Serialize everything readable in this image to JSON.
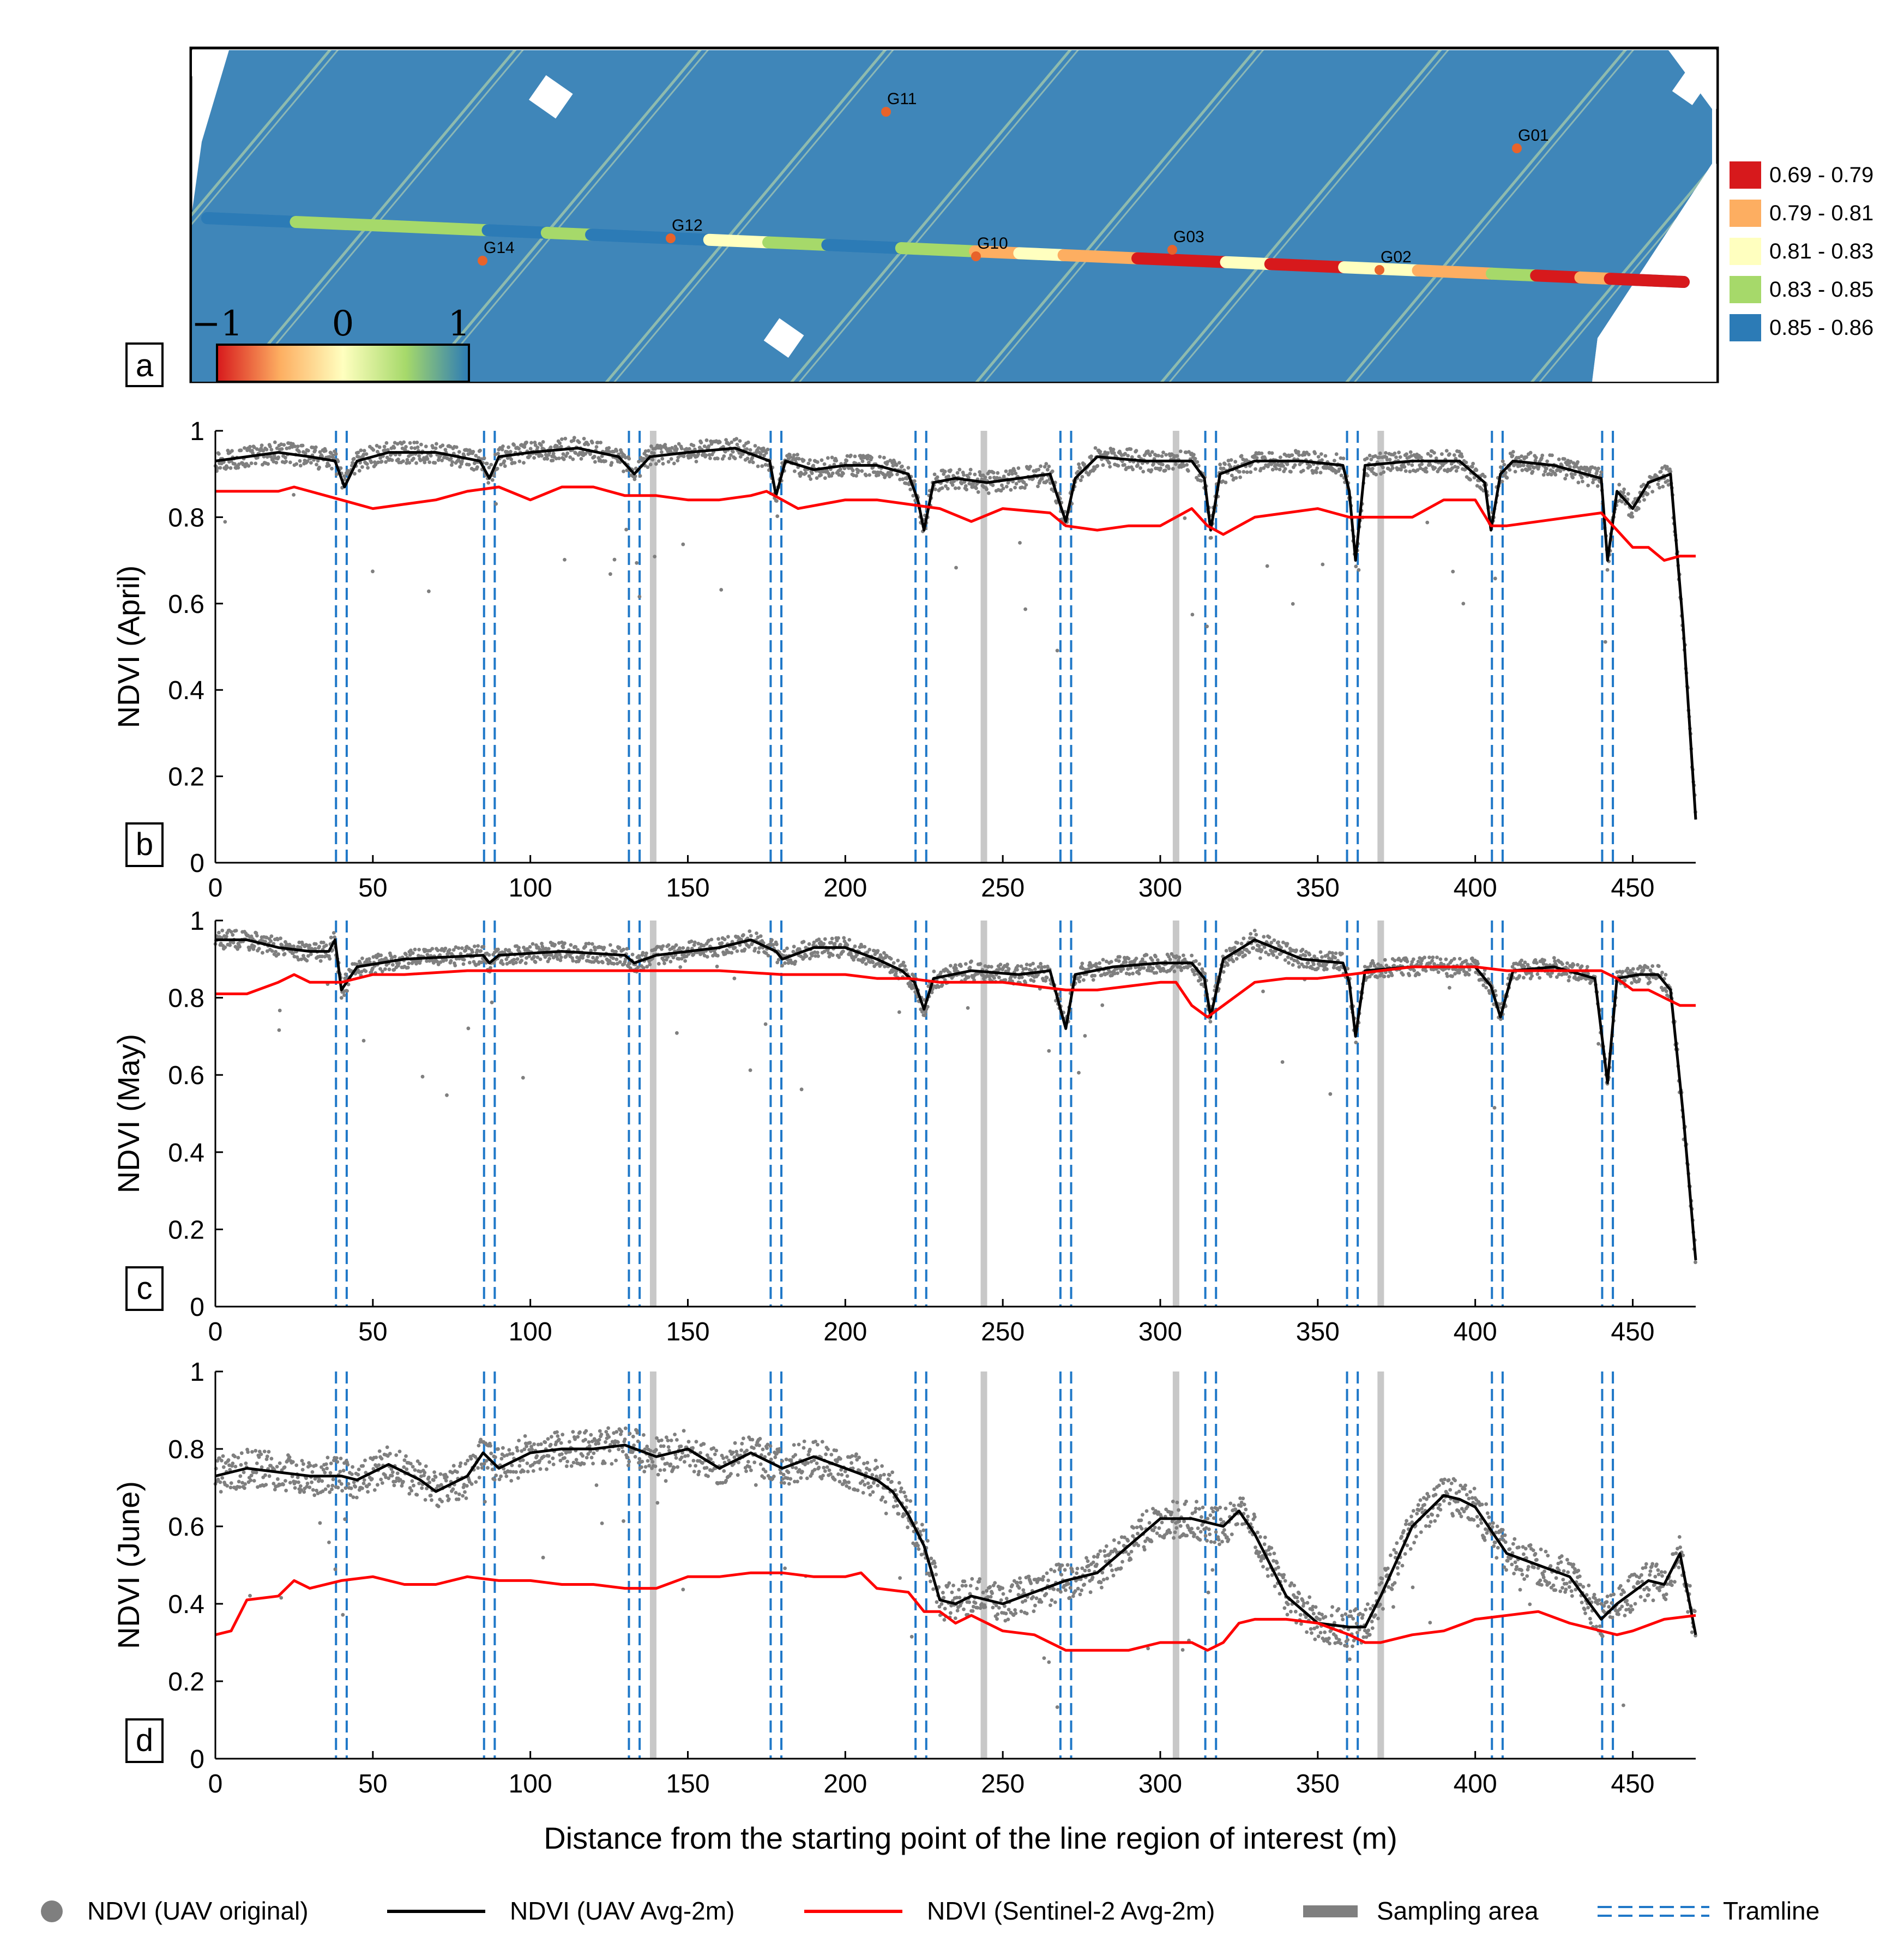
{
  "map": {
    "tag": "a",
    "colorbar": {
      "ticks": [
        "−1",
        "0",
        "1"
      ]
    },
    "classes": [
      {
        "label": "0.69 - 0.79",
        "color": "#d7191c"
      },
      {
        "label": "0.79 - 0.81",
        "color": "#fdae61"
      },
      {
        "label": "0.81 - 0.83",
        "color": "#ffffbf"
      },
      {
        "label": "0.83 - 0.85",
        "color": "#a6d96a"
      },
      {
        "label": "0.85 - 0.86",
        "color": "#2c7bb6"
      }
    ],
    "points": [
      "G11",
      "G01",
      "G12",
      "G10",
      "G03",
      "G02",
      "G14"
    ],
    "line_segments": [
      {
        "from": 0,
        "to": 0.06,
        "cls": 4
      },
      {
        "from": 0.06,
        "to": 0.12,
        "cls": 3
      },
      {
        "from": 0.12,
        "to": 0.19,
        "cls": 3
      },
      {
        "from": 0.19,
        "to": 0.23,
        "cls": 4
      },
      {
        "from": 0.23,
        "to": 0.26,
        "cls": 3
      },
      {
        "from": 0.26,
        "to": 0.34,
        "cls": 4
      },
      {
        "from": 0.34,
        "to": 0.38,
        "cls": 2
      },
      {
        "from": 0.38,
        "to": 0.42,
        "cls": 3
      },
      {
        "from": 0.42,
        "to": 0.47,
        "cls": 4
      },
      {
        "from": 0.47,
        "to": 0.52,
        "cls": 3
      },
      {
        "from": 0.52,
        "to": 0.55,
        "cls": 1
      },
      {
        "from": 0.55,
        "to": 0.58,
        "cls": 2
      },
      {
        "from": 0.58,
        "to": 0.63,
        "cls": 1
      },
      {
        "from": 0.63,
        "to": 0.69,
        "cls": 0
      },
      {
        "from": 0.69,
        "to": 0.72,
        "cls": 2
      },
      {
        "from": 0.72,
        "to": 0.77,
        "cls": 0
      },
      {
        "from": 0.77,
        "to": 0.82,
        "cls": 2
      },
      {
        "from": 0.82,
        "to": 0.87,
        "cls": 1
      },
      {
        "from": 0.87,
        "to": 0.9,
        "cls": 3
      },
      {
        "from": 0.9,
        "to": 0.93,
        "cls": 0
      },
      {
        "from": 0.93,
        "to": 0.95,
        "cls": 1
      },
      {
        "from": 0.95,
        "to": 1.0,
        "cls": 0
      }
    ]
  },
  "chart_data": [
    {
      "type": "line",
      "tag": "b",
      "ylabel": "NDVI (April)",
      "xlim": [
        0,
        470
      ],
      "ylim": [
        0,
        1
      ],
      "xticks": [
        "0",
        "50",
        "100",
        "150",
        "200",
        "250",
        "300",
        "350",
        "400",
        "450"
      ],
      "yticks": [
        "0",
        "0.2",
        "0.4",
        "0.6",
        "0.8",
        "1"
      ],
      "sampling_areas": [
        139,
        244,
        305,
        370
      ],
      "tramlines": [
        40,
        87,
        133,
        178,
        224,
        270,
        316,
        361,
        407,
        442
      ],
      "series": [
        {
          "name": "NDVI (UAV Avg-2m)",
          "x": [
            0,
            10,
            20,
            30,
            38,
            41,
            45,
            55,
            70,
            84,
            87,
            90,
            100,
            115,
            128,
            133,
            138,
            150,
            165,
            176,
            178,
            181,
            190,
            200,
            210,
            220,
            223,
            225,
            228,
            235,
            245,
            255,
            265,
            270,
            273,
            280,
            295,
            310,
            314,
            316,
            319,
            330,
            345,
            358,
            360,
            362,
            365,
            380,
            395,
            403,
            405,
            408,
            412,
            425,
            440,
            442,
            445,
            450,
            455,
            462,
            466,
            470
          ],
          "y": [
            0.93,
            0.94,
            0.95,
            0.94,
            0.93,
            0.87,
            0.93,
            0.95,
            0.95,
            0.93,
            0.89,
            0.94,
            0.95,
            0.96,
            0.94,
            0.9,
            0.94,
            0.95,
            0.96,
            0.93,
            0.85,
            0.93,
            0.91,
            0.92,
            0.92,
            0.9,
            0.84,
            0.77,
            0.88,
            0.89,
            0.88,
            0.89,
            0.9,
            0.79,
            0.89,
            0.94,
            0.93,
            0.93,
            0.89,
            0.77,
            0.9,
            0.93,
            0.93,
            0.92,
            0.86,
            0.7,
            0.92,
            0.93,
            0.93,
            0.88,
            0.77,
            0.9,
            0.93,
            0.92,
            0.89,
            0.7,
            0.86,
            0.82,
            0.88,
            0.9,
            0.55,
            0.1
          ]
        },
        {
          "name": "NDVI (Sentinel-2 Avg-2m)",
          "x": [
            0,
            10,
            20,
            25,
            30,
            40,
            50,
            60,
            70,
            80,
            90,
            100,
            110,
            120,
            130,
            140,
            150,
            160,
            170,
            175,
            185,
            200,
            210,
            220,
            230,
            240,
            250,
            265,
            270,
            280,
            290,
            300,
            310,
            315,
            320,
            330,
            340,
            350,
            360,
            365,
            370,
            380,
            390,
            400,
            405,
            410,
            420,
            430,
            440,
            445,
            450,
            455,
            460,
            465,
            470
          ],
          "y": [
            0.86,
            0.86,
            0.86,
            0.87,
            0.86,
            0.84,
            0.82,
            0.83,
            0.84,
            0.86,
            0.87,
            0.84,
            0.87,
            0.87,
            0.85,
            0.85,
            0.84,
            0.84,
            0.85,
            0.86,
            0.82,
            0.84,
            0.84,
            0.83,
            0.82,
            0.79,
            0.82,
            0.81,
            0.78,
            0.77,
            0.78,
            0.78,
            0.82,
            0.78,
            0.76,
            0.8,
            0.81,
            0.82,
            0.8,
            0.8,
            0.8,
            0.8,
            0.84,
            0.84,
            0.78,
            0.78,
            0.79,
            0.8,
            0.81,
            0.77,
            0.73,
            0.73,
            0.7,
            0.71,
            0.71
          ]
        }
      ]
    },
    {
      "type": "line",
      "tag": "c",
      "ylabel": "NDVI (May)",
      "xlim": [
        0,
        470
      ],
      "ylim": [
        0,
        1
      ],
      "xticks": [
        "0",
        "50",
        "100",
        "150",
        "200",
        "250",
        "300",
        "350",
        "400",
        "450"
      ],
      "yticks": [
        "0",
        "0.2",
        "0.4",
        "0.6",
        "0.8",
        "1"
      ],
      "sampling_areas": [
        139,
        244,
        305,
        370
      ],
      "tramlines": [
        40,
        87,
        133,
        178,
        224,
        270,
        316,
        361,
        407,
        442
      ],
      "series": [
        {
          "name": "NDVI (UAV Avg-2m)",
          "x": [
            0,
            10,
            20,
            30,
            36,
            38,
            40,
            45,
            60,
            85,
            87,
            90,
            110,
            130,
            133,
            140,
            160,
            170,
            178,
            180,
            190,
            200,
            210,
            218,
            222,
            225,
            228,
            240,
            255,
            265,
            270,
            273,
            285,
            300,
            310,
            314,
            316,
            320,
            330,
            345,
            358,
            360,
            362,
            365,
            380,
            400,
            405,
            408,
            412,
            425,
            438,
            442,
            445,
            452,
            458,
            462,
            466,
            470
          ],
          "y": [
            0.95,
            0.95,
            0.93,
            0.92,
            0.92,
            0.95,
            0.82,
            0.88,
            0.9,
            0.91,
            0.89,
            0.91,
            0.92,
            0.91,
            0.89,
            0.91,
            0.93,
            0.95,
            0.92,
            0.9,
            0.93,
            0.93,
            0.9,
            0.87,
            0.84,
            0.77,
            0.85,
            0.87,
            0.86,
            0.87,
            0.72,
            0.86,
            0.88,
            0.89,
            0.89,
            0.85,
            0.75,
            0.9,
            0.95,
            0.9,
            0.89,
            0.84,
            0.7,
            0.87,
            0.88,
            0.88,
            0.83,
            0.75,
            0.87,
            0.88,
            0.85,
            0.58,
            0.85,
            0.86,
            0.86,
            0.82,
            0.5,
            0.12
          ]
        },
        {
          "name": "NDVI (Sentinel-2 Avg-2m)",
          "x": [
            0,
            10,
            20,
            25,
            30,
            40,
            50,
            60,
            80,
            100,
            120,
            140,
            160,
            180,
            200,
            210,
            220,
            230,
            240,
            250,
            260,
            270,
            280,
            290,
            300,
            305,
            310,
            315,
            320,
            330,
            340,
            350,
            360,
            370,
            380,
            390,
            400,
            410,
            420,
            430,
            440,
            445,
            450,
            455,
            460,
            465,
            470
          ],
          "y": [
            0.81,
            0.81,
            0.84,
            0.86,
            0.84,
            0.84,
            0.86,
            0.86,
            0.87,
            0.87,
            0.87,
            0.87,
            0.87,
            0.86,
            0.86,
            0.85,
            0.85,
            0.84,
            0.84,
            0.84,
            0.83,
            0.82,
            0.82,
            0.83,
            0.84,
            0.84,
            0.78,
            0.75,
            0.78,
            0.84,
            0.85,
            0.85,
            0.86,
            0.87,
            0.88,
            0.88,
            0.88,
            0.87,
            0.87,
            0.87,
            0.87,
            0.85,
            0.82,
            0.82,
            0.8,
            0.78,
            0.78
          ]
        }
      ]
    },
    {
      "type": "line",
      "tag": "d",
      "ylabel": "NDVI (June)",
      "xlabel": "Distance from the starting point of the line region of interest (m)",
      "xlim": [
        0,
        470
      ],
      "ylim": [
        0,
        1
      ],
      "xticks": [
        "0",
        "50",
        "100",
        "150",
        "200",
        "250",
        "300",
        "350",
        "400",
        "450"
      ],
      "yticks": [
        "0",
        "0.2",
        "0.4",
        "0.6",
        "0.8",
        "1"
      ],
      "sampling_areas": [
        139,
        244,
        305,
        370
      ],
      "tramlines": [
        40,
        87,
        133,
        178,
        224,
        270,
        316,
        361,
        407,
        442
      ],
      "series": [
        {
          "name": "NDVI (UAV Avg-2m)",
          "x": [
            0,
            10,
            20,
            30,
            40,
            45,
            55,
            65,
            70,
            80,
            85,
            90,
            100,
            110,
            120,
            130,
            140,
            150,
            160,
            170,
            180,
            190,
            200,
            210,
            215,
            220,
            225,
            230,
            235,
            240,
            250,
            260,
            270,
            280,
            290,
            300,
            310,
            320,
            325,
            330,
            340,
            350,
            360,
            365,
            370,
            380,
            390,
            395,
            400,
            410,
            420,
            430,
            440,
            445,
            450,
            455,
            460,
            465,
            470
          ],
          "y": [
            0.73,
            0.75,
            0.74,
            0.73,
            0.73,
            0.72,
            0.76,
            0.72,
            0.69,
            0.73,
            0.79,
            0.75,
            0.79,
            0.8,
            0.8,
            0.81,
            0.78,
            0.8,
            0.75,
            0.79,
            0.75,
            0.78,
            0.75,
            0.72,
            0.69,
            0.63,
            0.55,
            0.41,
            0.4,
            0.42,
            0.4,
            0.43,
            0.46,
            0.48,
            0.55,
            0.62,
            0.62,
            0.6,
            0.64,
            0.58,
            0.42,
            0.35,
            0.34,
            0.34,
            0.42,
            0.6,
            0.68,
            0.67,
            0.65,
            0.53,
            0.5,
            0.47,
            0.36,
            0.4,
            0.43,
            0.46,
            0.45,
            0.53,
            0.32
          ]
        },
        {
          "name": "NDVI (Sentinel-2 Avg-2m)",
          "x": [
            0,
            5,
            10,
            20,
            25,
            30,
            40,
            50,
            60,
            70,
            80,
            90,
            100,
            110,
            120,
            130,
            140,
            150,
            160,
            170,
            180,
            190,
            200,
            205,
            210,
            220,
            225,
            230,
            235,
            240,
            245,
            250,
            260,
            270,
            280,
            290,
            300,
            310,
            315,
            320,
            325,
            330,
            340,
            350,
            360,
            365,
            370,
            380,
            390,
            400,
            410,
            420,
            430,
            440,
            445,
            450,
            460,
            470
          ],
          "y": [
            0.32,
            0.33,
            0.41,
            0.42,
            0.46,
            0.44,
            0.46,
            0.47,
            0.45,
            0.45,
            0.47,
            0.46,
            0.46,
            0.45,
            0.45,
            0.44,
            0.44,
            0.47,
            0.47,
            0.48,
            0.48,
            0.47,
            0.47,
            0.48,
            0.44,
            0.43,
            0.38,
            0.38,
            0.35,
            0.37,
            0.35,
            0.33,
            0.32,
            0.28,
            0.28,
            0.28,
            0.3,
            0.3,
            0.28,
            0.3,
            0.35,
            0.36,
            0.36,
            0.35,
            0.32,
            0.3,
            0.3,
            0.32,
            0.33,
            0.36,
            0.37,
            0.38,
            0.35,
            0.33,
            0.32,
            0.33,
            0.36,
            0.37
          ]
        }
      ]
    }
  ],
  "legend": {
    "uav_original": "NDVI (UAV original)",
    "uav_avg": "NDVI (UAV Avg-2m)",
    "sentinel_avg": "NDVI (Sentinel-2 Avg-2m)",
    "sampling": "Sampling area",
    "tramline": "Tramline"
  },
  "colors": {
    "uav_points": "#7f7f7f",
    "uav_avg": "#000000",
    "sentinel": "#ff0000",
    "sampling": "#c8c8c8",
    "tramline": "#1f78c8"
  }
}
